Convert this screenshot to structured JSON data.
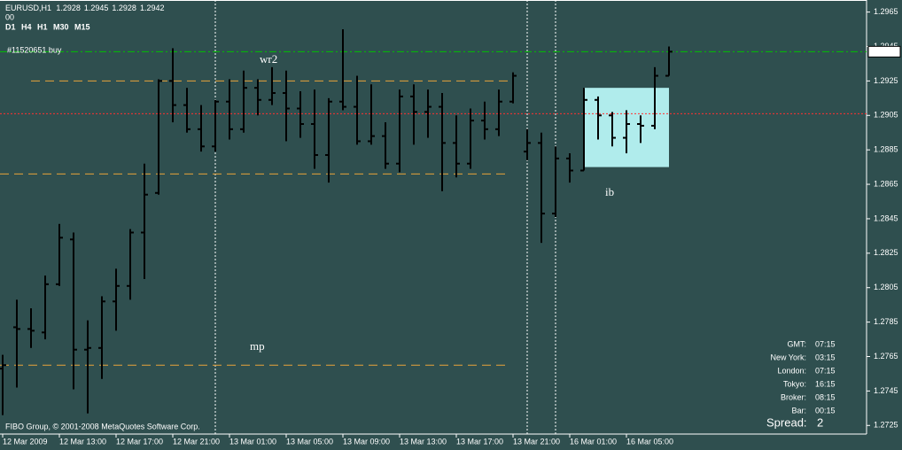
{
  "chart_data": {
    "type": "ohlc",
    "symbol": "EURUSD,H1",
    "timeframes": [
      {
        "label": "D1",
        "color": "#ffff00"
      },
      {
        "label": "H4",
        "color": "#7fff00"
      },
      {
        "label": "H1",
        "color": "#ffff00"
      },
      {
        "label": "M30",
        "color": "#ffff00"
      },
      {
        "label": "M15",
        "color": "#00ff00"
      }
    ],
    "subheader": "00",
    "order_label": "#11520651 buy",
    "copyright": "FIBO Group, © 2001-2008 MetaQuotes Software Corp.",
    "color": "#000000",
    "categories": [
      "12 Mar 2009",
      null,
      null,
      null,
      "12 Mar 13:00",
      null,
      null,
      null,
      "12 Mar 17:00",
      null,
      null,
      null,
      "12 Mar 21:00",
      null,
      null,
      null,
      "13 Mar 01:00",
      null,
      null,
      null,
      "13 Mar 05:00",
      null,
      null,
      null,
      "13 Mar 09:00",
      null,
      null,
      null,
      "13 Mar 13:00",
      null,
      null,
      null,
      "13 Mar 17:00",
      null,
      null,
      null,
      "13 Mar 21:00",
      null,
      null,
      null,
      "16 Mar 01:00",
      null,
      null,
      null,
      "16 Mar 05:00",
      null,
      null,
      null
    ],
    "open": [
      1.2758,
      1.2782,
      1.2781,
      1.2779,
      1.2807,
      1.2833,
      1.2769,
      1.277,
      1.2797,
      1.2806,
      1.2837,
      1.286,
      1.2925,
      1.2911,
      1.2897,
      1.2887,
      1.2913,
      1.2897,
      1.2921,
      1.2914,
      1.2918,
      1.2909,
      1.29,
      1.2882,
      1.2913,
      1.291,
      1.289,
      1.2893,
      1.2877,
      1.2916,
      1.2907,
      1.291,
      1.2889,
      1.2877,
      1.2902,
      1.2897,
      1.2913,
      1.2884,
      1.2889,
      1.2848,
      1.288,
      1.2873,
      1.2914,
      1.2905,
      1.2892,
      1.29,
      1.2899,
      1.2928
    ],
    "high": [
      1.2766,
      1.2798,
      1.2793,
      1.2812,
      1.2842,
      1.2837,
      1.2786,
      1.28,
      1.2816,
      1.2839,
      1.2877,
      1.2926,
      1.2944,
      1.2921,
      1.2911,
      1.2914,
      1.2926,
      1.2931,
      1.2926,
      1.2933,
      1.2931,
      1.2919,
      1.292,
      1.2915,
      1.2955,
      1.2928,
      1.2923,
      1.2901,
      1.292,
      1.2923,
      1.292,
      1.2918,
      1.2905,
      1.2909,
      1.2913,
      1.292,
      1.293,
      1.2897,
      1.2895,
      1.2887,
      1.2883,
      1.2921,
      1.2916,
      1.2907,
      1.2908,
      1.2905,
      1.2933,
      1.2945
    ],
    "low": [
      1.2731,
      1.2747,
      1.277,
      1.2775,
      1.2806,
      1.2746,
      1.2732,
      1.2752,
      1.278,
      1.2798,
      1.281,
      1.2859,
      1.2901,
      1.2895,
      1.2884,
      1.2884,
      1.2891,
      1.2895,
      1.2905,
      1.2911,
      1.289,
      1.2892,
      1.2874,
      1.2866,
      1.2908,
      1.2888,
      1.2888,
      1.2874,
      1.2872,
      1.2888,
      1.2892,
      1.2861,
      1.2869,
      1.2874,
      1.2891,
      1.2893,
      1.2912,
      1.2879,
      1.2831,
      1.2846,
      1.2866,
      1.2873,
      1.2891,
      1.2887,
      1.2883,
      1.2889,
      1.2897,
      1.2928
    ],
    "close": [
      1.276,
      1.2781,
      1.278,
      1.2807,
      1.2834,
      1.2769,
      1.277,
      1.2797,
      1.2806,
      1.2837,
      1.2859,
      1.2925,
      1.2911,
      1.2897,
      1.2887,
      1.2913,
      1.2897,
      1.2921,
      1.2914,
      1.2918,
      1.2909,
      1.29,
      1.2882,
      1.2913,
      1.291,
      1.289,
      1.2893,
      1.2877,
      1.2916,
      1.2907,
      1.291,
      1.2889,
      1.2877,
      1.2902,
      1.2897,
      1.2913,
      1.2928,
      1.2889,
      1.2848,
      1.288,
      1.2873,
      1.2914,
      1.2905,
      1.2892,
      1.29,
      1.2899,
      1.2928,
      1.2942
    ],
    "ylim": [
      1.272,
      1.2972
    ],
    "yticks": [
      1.2965,
      1.2945,
      1.2925,
      1.2905,
      1.2885,
      1.2865,
      1.2845,
      1.2825,
      1.2805,
      1.2785,
      1.2765,
      1.2745,
      1.2725
    ],
    "grid": false,
    "levels": [
      {
        "label": "wr2",
        "value": 1.2925,
        "color": "#e8a33a"
      },
      {
        "value": 1.2871,
        "color": "#e8a33a"
      },
      {
        "label": "mp",
        "value": 1.276,
        "color": "#e8a33a"
      },
      {
        "value": 1.2906,
        "color": "#ff3030"
      },
      {
        "value": 1.2942,
        "color": "#00c000"
      }
    ],
    "box": {
      "label": "ib",
      "high": 1.2921,
      "low": 1.2875,
      "color": "#b0ecec"
    },
    "info": [
      {
        "label": "GMT:",
        "value": "07:15"
      },
      {
        "label": "New York:",
        "value": "03:15"
      },
      {
        "label": "London:",
        "value": "07:15"
      },
      {
        "label": "Tokyo:",
        "value": "16:15"
      },
      {
        "label": "Broker:",
        "value": "08:15"
      },
      {
        "label": "Bar:",
        "value": "00:15"
      }
    ],
    "spread_label": "Spread:",
    "spread": 2
  }
}
